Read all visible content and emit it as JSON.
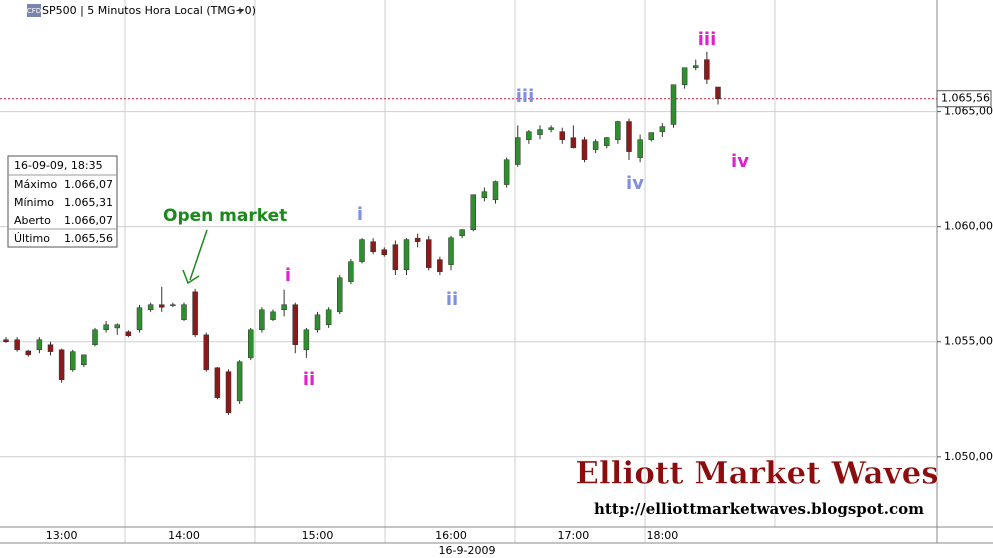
{
  "chart_data": {
    "type": "candlestick",
    "title": "SP500 | 5 Minutos Hora Local (TMG+0)",
    "badge": "CFD",
    "date_label": "16-9-2009",
    "categories": [
      null,
      null,
      null,
      null,
      null,
      "13:00",
      null,
      null,
      null,
      null,
      null,
      null,
      null,
      null,
      null,
      null,
      "14:00",
      null,
      null,
      null,
      null,
      null,
      null,
      null,
      null,
      null,
      null,
      null,
      "15:00",
      null,
      null,
      null,
      null,
      null,
      null,
      null,
      null,
      null,
      null,
      null,
      "16:00",
      null,
      null,
      null,
      null,
      null,
      null,
      null,
      null,
      null,
      null,
      "17:00",
      null,
      null,
      null,
      null,
      null,
      null,
      null,
      "18:00",
      null,
      null,
      null,
      null,
      null
    ],
    "ohlc": [
      [
        1055.09,
        1055.2,
        1054.95,
        1055.0
      ],
      [
        1055.09,
        1055.2,
        1054.57,
        1054.65
      ],
      [
        1054.6,
        1054.65,
        1054.35,
        1054.43
      ],
      [
        1054.65,
        1055.2,
        1054.5,
        1055.09
      ],
      [
        1054.87,
        1055.0,
        1054.4,
        1054.57
      ],
      [
        1054.65,
        1054.7,
        1053.22,
        1053.35
      ],
      [
        1053.78,
        1054.65,
        1053.7,
        1054.57
      ],
      [
        1054.0,
        1054.45,
        1053.9,
        1054.43
      ],
      [
        1054.87,
        1055.6,
        1054.8,
        1055.52
      ],
      [
        1055.52,
        1055.9,
        1055.4,
        1055.74
      ],
      [
        1055.6,
        1055.8,
        1055.3,
        1055.74
      ],
      [
        1055.43,
        1055.5,
        1055.2,
        1055.26
      ],
      [
        1055.52,
        1056.6,
        1055.4,
        1056.48
      ],
      [
        1056.39,
        1056.7,
        1056.3,
        1056.61
      ],
      [
        1056.61,
        1057.39,
        1056.3,
        1056.5
      ],
      [
        1056.6,
        1056.7,
        1056.5,
        1056.61
      ],
      [
        1055.96,
        1056.7,
        1055.9,
        1056.61
      ],
      [
        1057.17,
        1057.3,
        1055.2,
        1055.3
      ],
      [
        1055.3,
        1055.4,
        1053.7,
        1053.78
      ],
      [
        1053.87,
        1053.9,
        1052.5,
        1052.57
      ],
      [
        1053.7,
        1053.8,
        1051.83,
        1051.91
      ],
      [
        1052.43,
        1054.2,
        1052.3,
        1054.13
      ],
      [
        1054.3,
        1055.6,
        1054.2,
        1055.52
      ],
      [
        1055.52,
        1056.5,
        1055.4,
        1056.39
      ],
      [
        1055.96,
        1056.4,
        1055.9,
        1056.3
      ],
      [
        1056.39,
        1057.26,
        1056.1,
        1056.61
      ],
      [
        1056.61,
        1056.7,
        1054.5,
        1054.87
      ],
      [
        1054.65,
        1055.6,
        1054.3,
        1055.52
      ],
      [
        1055.52,
        1056.3,
        1055.4,
        1056.17
      ],
      [
        1055.74,
        1056.5,
        1055.6,
        1056.39
      ],
      [
        1056.3,
        1057.9,
        1056.2,
        1057.78
      ],
      [
        1057.61,
        1058.6,
        1057.5,
        1058.48
      ],
      [
        1058.48,
        1059.5,
        1058.4,
        1059.44
      ],
      [
        1059.35,
        1059.5,
        1058.8,
        1058.91
      ],
      [
        1059.0,
        1059.1,
        1058.7,
        1058.78
      ],
      [
        1059.22,
        1059.4,
        1057.9,
        1058.13
      ],
      [
        1058.13,
        1059.5,
        1057.9,
        1059.44
      ],
      [
        1059.5,
        1059.7,
        1059.1,
        1059.35
      ],
      [
        1059.44,
        1059.6,
        1058.1,
        1058.22
      ],
      [
        1058.57,
        1058.7,
        1057.9,
        1058.04
      ],
      [
        1058.35,
        1059.6,
        1058.1,
        1059.52
      ],
      [
        1059.61,
        1059.9,
        1059.5,
        1059.87
      ],
      [
        1059.87,
        1061.4,
        1059.8,
        1061.39
      ],
      [
        1061.26,
        1061.7,
        1061.1,
        1061.52
      ],
      [
        1061.17,
        1062.0,
        1061.0,
        1061.96
      ],
      [
        1061.83,
        1063.0,
        1061.7,
        1062.91
      ],
      [
        1062.7,
        1064.4,
        1062.6,
        1063.87
      ],
      [
        1063.78,
        1064.2,
        1063.6,
        1064.13
      ],
      [
        1064.0,
        1064.4,
        1063.8,
        1064.22
      ],
      [
        1064.22,
        1064.4,
        1064.1,
        1064.3
      ],
      [
        1064.13,
        1064.3,
        1063.6,
        1063.78
      ],
      [
        1063.87,
        1064.4,
        1063.4,
        1063.43
      ],
      [
        1063.78,
        1063.9,
        1062.8,
        1062.91
      ],
      [
        1063.35,
        1063.8,
        1063.2,
        1063.7
      ],
      [
        1063.52,
        1063.9,
        1063.4,
        1063.87
      ],
      [
        1063.78,
        1064.6,
        1063.6,
        1064.57
      ],
      [
        1064.57,
        1064.7,
        1062.9,
        1063.26
      ],
      [
        1063.0,
        1064.0,
        1062.8,
        1063.78
      ],
      [
        1063.78,
        1064.1,
        1063.7,
        1064.09
      ],
      [
        1064.13,
        1064.5,
        1063.9,
        1064.35
      ],
      [
        1064.44,
        1066.17,
        1064.3,
        1066.17
      ],
      [
        1066.17,
        1066.9,
        1066.0,
        1066.91
      ],
      [
        1066.91,
        1067.26,
        1066.8,
        1067.0
      ],
      [
        1067.26,
        1067.6,
        1066.2,
        1066.4
      ],
      [
        1066.07,
        1066.07,
        1065.31,
        1065.56
      ]
    ],
    "up_color": "#2f8f2f",
    "down_color": "#8b1a1a",
    "ylim": [
      1046.95,
      1069.85
    ],
    "yticks": [
      {
        "value": 1050,
        "label": "1.050,00"
      },
      {
        "value": 1055,
        "label": "1.055,00"
      },
      {
        "value": 1060,
        "label": "1.060,00"
      },
      {
        "value": 1065,
        "label": "1.065,00"
      }
    ],
    "grid": true,
    "last_price": {
      "value": 1065.56,
      "label": "1.065,56"
    },
    "info_box": {
      "title": "16-09-09, 18:35",
      "rows": [
        [
          "Máximo",
          "1.066,07"
        ],
        [
          "Mínimo",
          "1.065,31"
        ],
        [
          "Aberto",
          "1.066,07"
        ],
        [
          "Último",
          "1.065,56"
        ]
      ]
    },
    "annotations": [
      "Open market",
      "i",
      "ii",
      "i",
      "ii",
      "iii",
      "iv",
      "iii",
      "iv"
    ],
    "watermark": {
      "title": "Elliott Market Waves",
      "url": "http://elliottmarketwaves.blogspot.com"
    }
  }
}
